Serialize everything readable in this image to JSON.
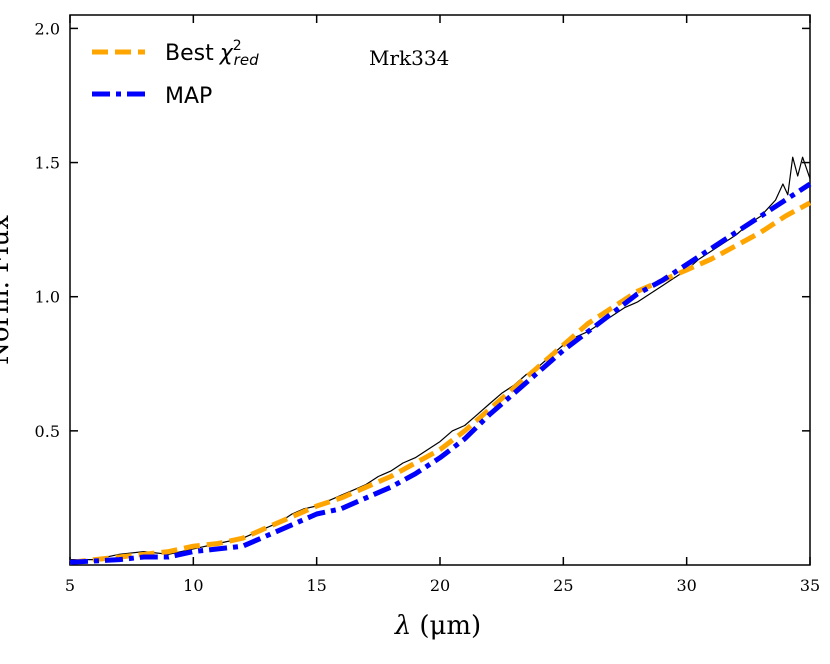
{
  "chart_data": {
    "type": "line",
    "title": "",
    "annotation": "Mrk334",
    "xlabel_symbol": "λ",
    "xlabel_unit": "(μm)",
    "ylabel": "Norm. Flux",
    "xlim": [
      5,
      35
    ],
    "ylim": [
      0.0,
      2.05
    ],
    "xticks": [
      5,
      10,
      15,
      20,
      25,
      30,
      35
    ],
    "xtick_labels": [
      "5",
      "10",
      "15",
      "20",
      "25",
      "30",
      "35"
    ],
    "yticks": [
      0.5,
      1.0,
      1.5,
      2.0
    ],
    "ytick_labels": [
      "0.5",
      "1.0",
      "1.5",
      "2.0"
    ],
    "grid": false,
    "legend_position": "top-left",
    "legend": [
      {
        "label": "Best",
        "chi_symbol": "χ",
        "chi_sup": "2",
        "chi_sub": "red",
        "color": "#FFA500",
        "style": "dashed"
      },
      {
        "label": "MAP",
        "color": "#0000FF",
        "style": "dashdot"
      }
    ],
    "series": [
      {
        "name": "Observed spectrum",
        "color": "#000000",
        "x": [
          5,
          6,
          7,
          8,
          9,
          10,
          11,
          12,
          12.5,
          13,
          13.5,
          14,
          14.5,
          15,
          15.5,
          16,
          16.5,
          17,
          17.5,
          18,
          18.5,
          19,
          19.5,
          20,
          20.5,
          21,
          21.5,
          22,
          22.5,
          23,
          23.5,
          24,
          24.5,
          25,
          25.5,
          26,
          26.5,
          27,
          27.5,
          28,
          28.5,
          29,
          29.5,
          30,
          30.5,
          31,
          31.5,
          32,
          32.5,
          33,
          33.3,
          33.6,
          33.9,
          34.1,
          34.3,
          34.5,
          34.7,
          35
        ],
        "y": [
          0.02,
          0.02,
          0.04,
          0.05,
          0.04,
          0.06,
          0.08,
          0.1,
          0.12,
          0.14,
          0.16,
          0.19,
          0.21,
          0.22,
          0.24,
          0.26,
          0.28,
          0.3,
          0.33,
          0.35,
          0.38,
          0.4,
          0.43,
          0.46,
          0.5,
          0.52,
          0.56,
          0.6,
          0.64,
          0.67,
          0.71,
          0.74,
          0.78,
          0.82,
          0.85,
          0.87,
          0.9,
          0.93,
          0.96,
          0.98,
          1.01,
          1.04,
          1.07,
          1.1,
          1.14,
          1.17,
          1.2,
          1.23,
          1.27,
          1.3,
          1.33,
          1.36,
          1.42,
          1.38,
          1.52,
          1.45,
          1.52,
          1.44
        ]
      },
      {
        "name": "Best χ²red",
        "color": "#FFA500",
        "x": [
          5,
          7,
          8,
          9,
          10,
          11,
          12,
          13,
          14,
          15,
          16,
          17,
          18,
          19,
          20,
          21,
          22,
          23,
          24,
          25,
          26,
          27,
          28,
          29,
          30,
          31,
          32,
          33,
          34,
          35
        ],
        "y": [
          0.01,
          0.03,
          0.04,
          0.05,
          0.07,
          0.08,
          0.1,
          0.14,
          0.18,
          0.22,
          0.25,
          0.29,
          0.33,
          0.38,
          0.43,
          0.5,
          0.58,
          0.66,
          0.74,
          0.82,
          0.9,
          0.96,
          1.02,
          1.06,
          1.1,
          1.14,
          1.19,
          1.24,
          1.3,
          1.35
        ]
      },
      {
        "name": "MAP",
        "color": "#0000FF",
        "x": [
          5,
          7,
          8,
          9,
          10,
          11,
          12,
          13,
          14,
          15,
          16,
          17,
          18,
          19,
          20,
          21,
          22,
          23,
          24,
          25,
          26,
          27,
          28,
          29,
          30,
          31,
          32,
          33,
          34,
          35
        ],
        "y": [
          0.01,
          0.02,
          0.03,
          0.03,
          0.05,
          0.06,
          0.07,
          0.11,
          0.15,
          0.19,
          0.21,
          0.25,
          0.29,
          0.34,
          0.4,
          0.47,
          0.56,
          0.64,
          0.72,
          0.8,
          0.87,
          0.94,
          1.01,
          1.06,
          1.12,
          1.18,
          1.24,
          1.3,
          1.36,
          1.42
        ]
      }
    ]
  }
}
